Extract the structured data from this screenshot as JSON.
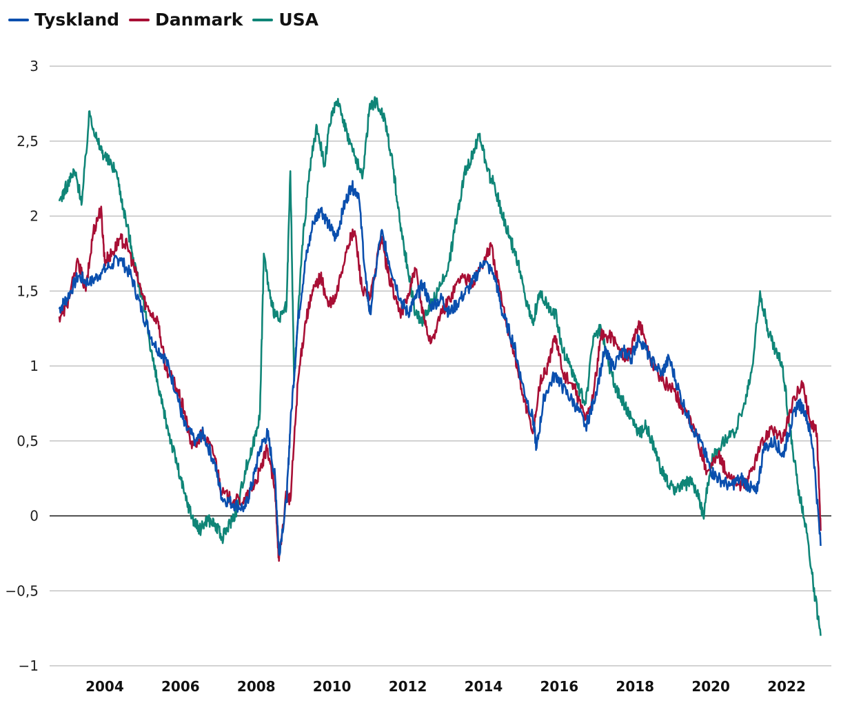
{
  "chart_data": {
    "type": "line",
    "title": "",
    "xlabel": "",
    "ylabel": "",
    "ylim": [
      -1,
      3
    ],
    "xlim": [
      2002.8,
      2023.0
    ],
    "y_ticks": [
      {
        "value": 3,
        "label": "3"
      },
      {
        "value": 2.5,
        "label": "2,5"
      },
      {
        "value": 2,
        "label": "2"
      },
      {
        "value": 1.5,
        "label": "1,5"
      },
      {
        "value": 1,
        "label": "1"
      },
      {
        "value": 0.5,
        "label": "0,5"
      },
      {
        "value": 0,
        "label": "0"
      },
      {
        "value": -0.5,
        "label": "−0,5"
      },
      {
        "value": -1,
        "label": "−1"
      }
    ],
    "x_ticks": [
      {
        "value": 2004,
        "label": "2004"
      },
      {
        "value": 2006,
        "label": "2006"
      },
      {
        "value": 2008,
        "label": "2008"
      },
      {
        "value": 2010,
        "label": "2010"
      },
      {
        "value": 2012,
        "label": "2012"
      },
      {
        "value": 2014,
        "label": "2014"
      },
      {
        "value": 2016,
        "label": "2016"
      },
      {
        "value": 2018,
        "label": "2018"
      },
      {
        "value": 2020,
        "label": "2020"
      },
      {
        "value": 2022,
        "label": "2022"
      }
    ],
    "grid": true,
    "legend_position": "top-left",
    "series": [
      {
        "name": "Tyskland",
        "color": "#0a4fae",
        "points": [
          [
            2002.8,
            1.38
          ],
          [
            2003.0,
            1.45
          ],
          [
            2003.3,
            1.6
          ],
          [
            2003.6,
            1.55
          ],
          [
            2003.9,
            1.62
          ],
          [
            2004.2,
            1.68
          ],
          [
            2004.4,
            1.72
          ],
          [
            2004.7,
            1.6
          ],
          [
            2005.0,
            1.35
          ],
          [
            2005.3,
            1.15
          ],
          [
            2005.6,
            1.05
          ],
          [
            2005.9,
            0.82
          ],
          [
            2006.1,
            0.6
          ],
          [
            2006.4,
            0.5
          ],
          [
            2006.6,
            0.55
          ],
          [
            2006.9,
            0.35
          ],
          [
            2007.1,
            0.12
          ],
          [
            2007.4,
            0.08
          ],
          [
            2007.7,
            0.05
          ],
          [
            2007.9,
            0.22
          ],
          [
            2008.1,
            0.45
          ],
          [
            2008.3,
            0.55
          ],
          [
            2008.5,
            0.25
          ],
          [
            2008.6,
            -0.25
          ],
          [
            2008.8,
            0.1
          ],
          [
            2008.9,
            0.6
          ],
          [
            2009.1,
            1.3
          ],
          [
            2009.3,
            1.7
          ],
          [
            2009.5,
            1.95
          ],
          [
            2009.7,
            2.05
          ],
          [
            2009.9,
            1.95
          ],
          [
            2010.1,
            1.85
          ],
          [
            2010.3,
            2.05
          ],
          [
            2010.5,
            2.2
          ],
          [
            2010.7,
            2.15
          ],
          [
            2010.9,
            1.55
          ],
          [
            2011.0,
            1.35
          ],
          [
            2011.3,
            1.9
          ],
          [
            2011.5,
            1.7
          ],
          [
            2011.8,
            1.45
          ],
          [
            2012.0,
            1.35
          ],
          [
            2012.2,
            1.45
          ],
          [
            2012.4,
            1.55
          ],
          [
            2012.6,
            1.4
          ],
          [
            2012.9,
            1.45
          ],
          [
            2013.1,
            1.35
          ],
          [
            2013.4,
            1.45
          ],
          [
            2013.7,
            1.55
          ],
          [
            2014.0,
            1.7
          ],
          [
            2014.3,
            1.6
          ],
          [
            2014.5,
            1.35
          ],
          [
            2014.8,
            1.15
          ],
          [
            2015.0,
            0.9
          ],
          [
            2015.3,
            0.65
          ],
          [
            2015.4,
            0.45
          ],
          [
            2015.6,
            0.8
          ],
          [
            2015.9,
            0.95
          ],
          [
            2016.1,
            0.85
          ],
          [
            2016.4,
            0.75
          ],
          [
            2016.7,
            0.6
          ],
          [
            2016.9,
            0.75
          ],
          [
            2017.2,
            1.1
          ],
          [
            2017.4,
            1.0
          ],
          [
            2017.7,
            1.1
          ],
          [
            2017.9,
            1.05
          ],
          [
            2018.1,
            1.2
          ],
          [
            2018.4,
            1.05
          ],
          [
            2018.7,
            0.95
          ],
          [
            2018.9,
            1.05
          ],
          [
            2019.2,
            0.8
          ],
          [
            2019.5,
            0.6
          ],
          [
            2019.8,
            0.45
          ],
          [
            2020.0,
            0.3
          ],
          [
            2020.2,
            0.25
          ],
          [
            2020.5,
            0.2
          ],
          [
            2020.8,
            0.25
          ],
          [
            2021.0,
            0.2
          ],
          [
            2021.2,
            0.15
          ],
          [
            2021.4,
            0.45
          ],
          [
            2021.7,
            0.5
          ],
          [
            2021.9,
            0.4
          ],
          [
            2022.1,
            0.6
          ],
          [
            2022.3,
            0.75
          ],
          [
            2022.5,
            0.7
          ],
          [
            2022.7,
            0.45
          ],
          [
            2022.9,
            -0.2
          ]
        ]
      },
      {
        "name": "Danmark",
        "color": "#a80f35",
        "points": [
          [
            2002.8,
            1.33
          ],
          [
            2003.0,
            1.4
          ],
          [
            2003.3,
            1.7
          ],
          [
            2003.5,
            1.5
          ],
          [
            2003.7,
            1.9
          ],
          [
            2003.9,
            2.05
          ],
          [
            2004.0,
            1.7
          ],
          [
            2004.2,
            1.75
          ],
          [
            2004.4,
            1.85
          ],
          [
            2004.6,
            1.8
          ],
          [
            2004.9,
            1.55
          ],
          [
            2005.1,
            1.4
          ],
          [
            2005.4,
            1.3
          ],
          [
            2005.6,
            1.0
          ],
          [
            2005.9,
            0.85
          ],
          [
            2006.1,
            0.7
          ],
          [
            2006.3,
            0.45
          ],
          [
            2006.6,
            0.55
          ],
          [
            2006.9,
            0.4
          ],
          [
            2007.1,
            0.15
          ],
          [
            2007.4,
            0.1
          ],
          [
            2007.7,
            0.1
          ],
          [
            2007.9,
            0.18
          ],
          [
            2008.1,
            0.3
          ],
          [
            2008.3,
            0.45
          ],
          [
            2008.5,
            0.15
          ],
          [
            2008.6,
            -0.3
          ],
          [
            2008.8,
            0.15
          ],
          [
            2008.9,
            0.1
          ],
          [
            2009.1,
            0.9
          ],
          [
            2009.3,
            1.3
          ],
          [
            2009.5,
            1.5
          ],
          [
            2009.7,
            1.6
          ],
          [
            2009.9,
            1.4
          ],
          [
            2010.1,
            1.45
          ],
          [
            2010.4,
            1.8
          ],
          [
            2010.6,
            1.9
          ],
          [
            2010.8,
            1.5
          ],
          [
            2011.0,
            1.45
          ],
          [
            2011.3,
            1.85
          ],
          [
            2011.5,
            1.6
          ],
          [
            2011.8,
            1.35
          ],
          [
            2012.0,
            1.45
          ],
          [
            2012.2,
            1.65
          ],
          [
            2012.4,
            1.35
          ],
          [
            2012.6,
            1.15
          ],
          [
            2012.9,
            1.35
          ],
          [
            2013.1,
            1.45
          ],
          [
            2013.4,
            1.6
          ],
          [
            2013.7,
            1.55
          ],
          [
            2014.0,
            1.7
          ],
          [
            2014.2,
            1.8
          ],
          [
            2014.5,
            1.4
          ],
          [
            2014.8,
            1.1
          ],
          [
            2015.0,
            0.85
          ],
          [
            2015.3,
            0.55
          ],
          [
            2015.5,
            0.9
          ],
          [
            2015.7,
            1.0
          ],
          [
            2015.9,
            1.2
          ],
          [
            2016.1,
            0.95
          ],
          [
            2016.4,
            0.85
          ],
          [
            2016.7,
            0.65
          ],
          [
            2016.9,
            0.8
          ],
          [
            2017.1,
            1.2
          ],
          [
            2017.4,
            1.2
          ],
          [
            2017.7,
            1.05
          ],
          [
            2017.9,
            1.1
          ],
          [
            2018.1,
            1.3
          ],
          [
            2018.4,
            1.05
          ],
          [
            2018.7,
            0.9
          ],
          [
            2019.0,
            0.85
          ],
          [
            2019.3,
            0.7
          ],
          [
            2019.6,
            0.55
          ],
          [
            2019.9,
            0.3
          ],
          [
            2020.2,
            0.4
          ],
          [
            2020.5,
            0.25
          ],
          [
            2020.8,
            0.2
          ],
          [
            2021.0,
            0.25
          ],
          [
            2021.3,
            0.45
          ],
          [
            2021.6,
            0.6
          ],
          [
            2021.9,
            0.5
          ],
          [
            2022.1,
            0.7
          ],
          [
            2022.4,
            0.9
          ],
          [
            2022.6,
            0.65
          ],
          [
            2022.8,
            0.55
          ],
          [
            2022.9,
            -0.1
          ]
        ]
      },
      {
        "name": "USA",
        "color": "#0f8577",
        "points": [
          [
            2002.8,
            2.1
          ],
          [
            2003.0,
            2.2
          ],
          [
            2003.2,
            2.3
          ],
          [
            2003.4,
            2.1
          ],
          [
            2003.6,
            2.7
          ],
          [
            2003.8,
            2.5
          ],
          [
            2004.0,
            2.4
          ],
          [
            2004.3,
            2.3
          ],
          [
            2004.5,
            2.05
          ],
          [
            2004.7,
            1.8
          ],
          [
            2004.9,
            1.55
          ],
          [
            2005.1,
            1.3
          ],
          [
            2005.3,
            1.0
          ],
          [
            2005.5,
            0.75
          ],
          [
            2005.7,
            0.55
          ],
          [
            2005.9,
            0.35
          ],
          [
            2006.1,
            0.15
          ],
          [
            2006.3,
            0.0
          ],
          [
            2006.5,
            -0.1
          ],
          [
            2006.7,
            -0.02
          ],
          [
            2006.9,
            -0.05
          ],
          [
            2007.1,
            -0.15
          ],
          [
            2007.3,
            -0.05
          ],
          [
            2007.5,
            0.05
          ],
          [
            2007.7,
            0.3
          ],
          [
            2007.9,
            0.45
          ],
          [
            2008.1,
            0.7
          ],
          [
            2008.2,
            1.75
          ],
          [
            2008.4,
            1.4
          ],
          [
            2008.6,
            1.3
          ],
          [
            2008.8,
            1.4
          ],
          [
            2008.9,
            2.3
          ],
          [
            2009.0,
            0.9
          ],
          [
            2009.2,
            1.75
          ],
          [
            2009.4,
            2.3
          ],
          [
            2009.6,
            2.6
          ],
          [
            2009.8,
            2.35
          ],
          [
            2010.0,
            2.7
          ],
          [
            2010.2,
            2.75
          ],
          [
            2010.4,
            2.55
          ],
          [
            2010.6,
            2.4
          ],
          [
            2010.8,
            2.25
          ],
          [
            2011.0,
            2.75
          ],
          [
            2011.2,
            2.75
          ],
          [
            2011.4,
            2.65
          ],
          [
            2011.6,
            2.35
          ],
          [
            2011.8,
            1.95
          ],
          [
            2012.0,
            1.65
          ],
          [
            2012.2,
            1.35
          ],
          [
            2012.4,
            1.3
          ],
          [
            2012.6,
            1.4
          ],
          [
            2012.8,
            1.5
          ],
          [
            2013.1,
            1.7
          ],
          [
            2013.3,
            2.0
          ],
          [
            2013.5,
            2.3
          ],
          [
            2013.7,
            2.4
          ],
          [
            2013.9,
            2.55
          ],
          [
            2014.1,
            2.3
          ],
          [
            2014.3,
            2.2
          ],
          [
            2014.5,
            2.0
          ],
          [
            2014.7,
            1.85
          ],
          [
            2014.9,
            1.7
          ],
          [
            2015.1,
            1.45
          ],
          [
            2015.3,
            1.3
          ],
          [
            2015.5,
            1.5
          ],
          [
            2015.7,
            1.4
          ],
          [
            2015.9,
            1.35
          ],
          [
            2016.1,
            1.1
          ],
          [
            2016.3,
            1.0
          ],
          [
            2016.5,
            0.85
          ],
          [
            2016.7,
            0.75
          ],
          [
            2016.9,
            1.2
          ],
          [
            2017.1,
            1.25
          ],
          [
            2017.3,
            1.0
          ],
          [
            2017.5,
            0.85
          ],
          [
            2017.7,
            0.75
          ],
          [
            2017.9,
            0.65
          ],
          [
            2018.1,
            0.55
          ],
          [
            2018.3,
            0.6
          ],
          [
            2018.5,
            0.45
          ],
          [
            2018.7,
            0.3
          ],
          [
            2018.9,
            0.2
          ],
          [
            2019.1,
            0.18
          ],
          [
            2019.3,
            0.2
          ],
          [
            2019.5,
            0.25
          ],
          [
            2019.7,
            0.1
          ],
          [
            2019.8,
            0.0
          ],
          [
            2020.0,
            0.35
          ],
          [
            2020.3,
            0.5
          ],
          [
            2020.6,
            0.55
          ],
          [
            2020.9,
            0.75
          ],
          [
            2021.1,
            1.0
          ],
          [
            2021.3,
            1.5
          ],
          [
            2021.5,
            1.25
          ],
          [
            2021.7,
            1.1
          ],
          [
            2021.9,
            1.0
          ],
          [
            2022.1,
            0.55
          ],
          [
            2022.3,
            0.2
          ],
          [
            2022.5,
            -0.05
          ],
          [
            2022.7,
            -0.45
          ],
          [
            2022.9,
            -0.8
          ]
        ]
      }
    ]
  }
}
